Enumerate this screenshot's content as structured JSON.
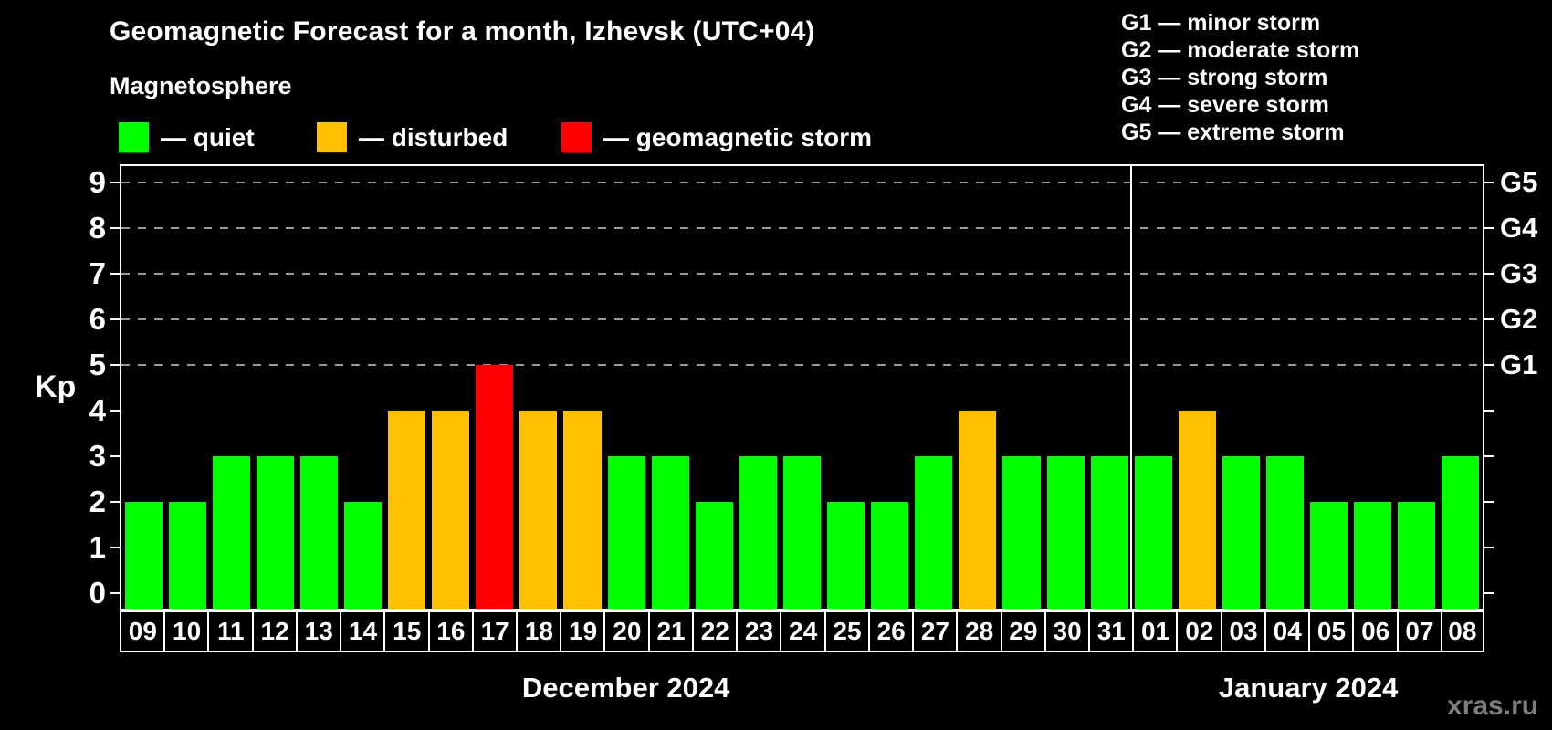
{
  "header": {
    "title": "Geomagnetic Forecast for a month, Izhevsk (UTC+04)",
    "subtitle": "Magnetosphere",
    "legend": [
      {
        "name": "quiet",
        "label": "— quiet",
        "color": "#00ff00"
      },
      {
        "name": "disturbed",
        "label": "— disturbed",
        "color": "#ffc000"
      },
      {
        "name": "storm",
        "label": "— geomagnetic storm",
        "color": "#ff0000"
      }
    ],
    "storm_scale_legend": [
      "G1 — minor storm",
      "G2 — moderate storm",
      "G3 — strong storm",
      "G4 — severe storm",
      "G5 — extreme storm"
    ]
  },
  "chart_data": {
    "type": "bar",
    "title": "Geomagnetic Forecast for a month, Izhevsk (UTC+04)",
    "ylabel": "Kp",
    "ylim": [
      0,
      9
    ],
    "yticks": [
      0,
      1,
      2,
      3,
      4,
      5,
      6,
      7,
      8,
      9
    ],
    "gridlines_at": [
      5,
      6,
      7,
      8,
      9
    ],
    "grid_color": "#9a9a9a",
    "axis_color": "#ffffff",
    "background": "#000000",
    "legend_position": "top-left",
    "right_axis": [
      {
        "value": 5,
        "label": "G1"
      },
      {
        "value": 6,
        "label": "G2"
      },
      {
        "value": 7,
        "label": "G3"
      },
      {
        "value": 8,
        "label": "G4"
      },
      {
        "value": 9,
        "label": "G5"
      }
    ],
    "colors": {
      "quiet": "#00ff00",
      "disturbed": "#ffc000",
      "storm": "#ff0000"
    },
    "categories": [
      "09",
      "10",
      "11",
      "12",
      "13",
      "14",
      "15",
      "16",
      "17",
      "18",
      "19",
      "20",
      "21",
      "22",
      "23",
      "24",
      "25",
      "26",
      "27",
      "28",
      "29",
      "30",
      "31",
      "01",
      "02",
      "03",
      "04",
      "05",
      "06",
      "07",
      "08"
    ],
    "values": [
      2,
      2,
      3,
      3,
      3,
      2,
      4,
      4,
      5,
      4,
      4,
      3,
      3,
      2,
      3,
      3,
      2,
      2,
      3,
      4,
      3,
      3,
      3,
      3,
      4,
      3,
      3,
      2,
      2,
      2,
      3
    ],
    "states": [
      "quiet",
      "quiet",
      "quiet",
      "quiet",
      "quiet",
      "quiet",
      "disturbed",
      "disturbed",
      "storm",
      "disturbed",
      "disturbed",
      "quiet",
      "quiet",
      "quiet",
      "quiet",
      "quiet",
      "quiet",
      "quiet",
      "quiet",
      "disturbed",
      "quiet",
      "quiet",
      "quiet",
      "quiet",
      "disturbed",
      "quiet",
      "quiet",
      "quiet",
      "quiet",
      "quiet",
      "quiet"
    ],
    "months": [
      {
        "label": "December 2024",
        "day_count": 23
      },
      {
        "label": "January 2024",
        "day_count": 8
      }
    ]
  },
  "watermark": "xras.ru"
}
